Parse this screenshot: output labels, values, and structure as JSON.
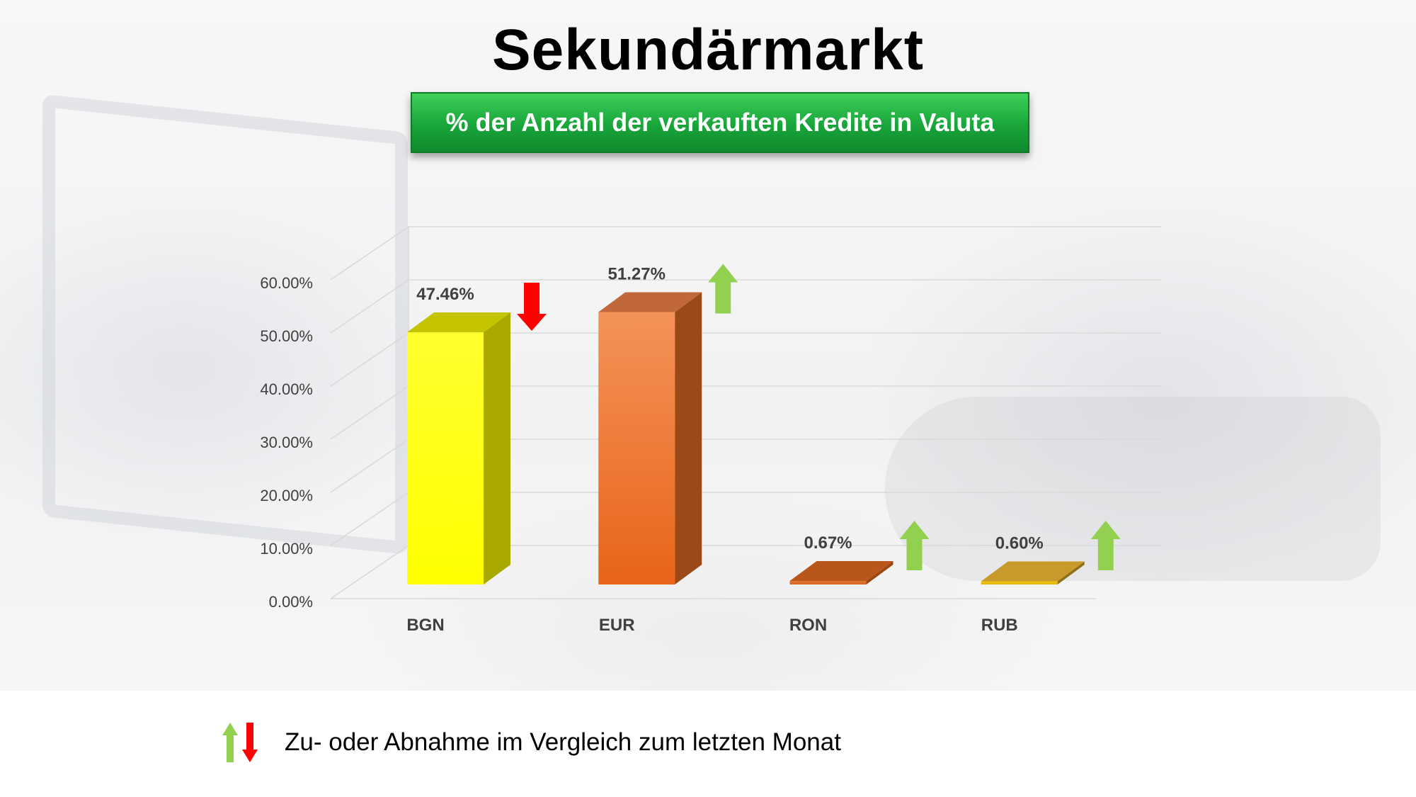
{
  "slide": {
    "title": "Sekundärmarkt",
    "subtitle": "% der Anzahl der verkauften Kredite in Valuta"
  },
  "legend": {
    "text": "Zu- oder Abnahme im Vergleich zum letzten Monat",
    "icons": [
      "arrow-up-green-icon",
      "arrow-down-red-icon"
    ]
  },
  "colors": {
    "up_arrow": "#92d050",
    "down_arrow": "#ff0000",
    "subtitle_bg": "#19a53a",
    "gridline": "#d9d9d9",
    "tick_text": "#404040",
    "category_text": "#404040",
    "label_text": "#404040"
  },
  "chart_data": {
    "type": "bar",
    "style": "3d-column",
    "categories": [
      "BGN",
      "EUR",
      "RON",
      "RUB"
    ],
    "values": [
      47.46,
      51.27,
      0.67,
      0.6
    ],
    "value_labels": [
      "47.46%",
      "51.27%",
      "0.67%",
      "0.60%"
    ],
    "trend": [
      "down",
      "up",
      "up",
      "up"
    ],
    "bar_colors": [
      {
        "front_top": "#ffff2e",
        "front_bottom": "#ffff00",
        "side": "#a9a900",
        "top": "#c4c400"
      },
      {
        "front_top": "#f4935a",
        "front_bottom": "#e86418",
        "side": "#9a4a16",
        "top": "#c0683a"
      },
      {
        "front_top": "#e07a30",
        "front_bottom": "#d46020",
        "side": "#9c4610",
        "top": "#b8561c"
      },
      {
        "front_top": "#f2c21a",
        "front_bottom": "#e8b400",
        "side": "#8f6f14",
        "top": "#c89a2c"
      }
    ],
    "yticks": [
      "0.00%",
      "10.00%",
      "20.00%",
      "30.00%",
      "40.00%",
      "50.00%",
      "60.00%"
    ],
    "ylim": [
      0,
      60
    ],
    "grid": true,
    "legend": "none",
    "xlabel": "",
    "ylabel": ""
  }
}
